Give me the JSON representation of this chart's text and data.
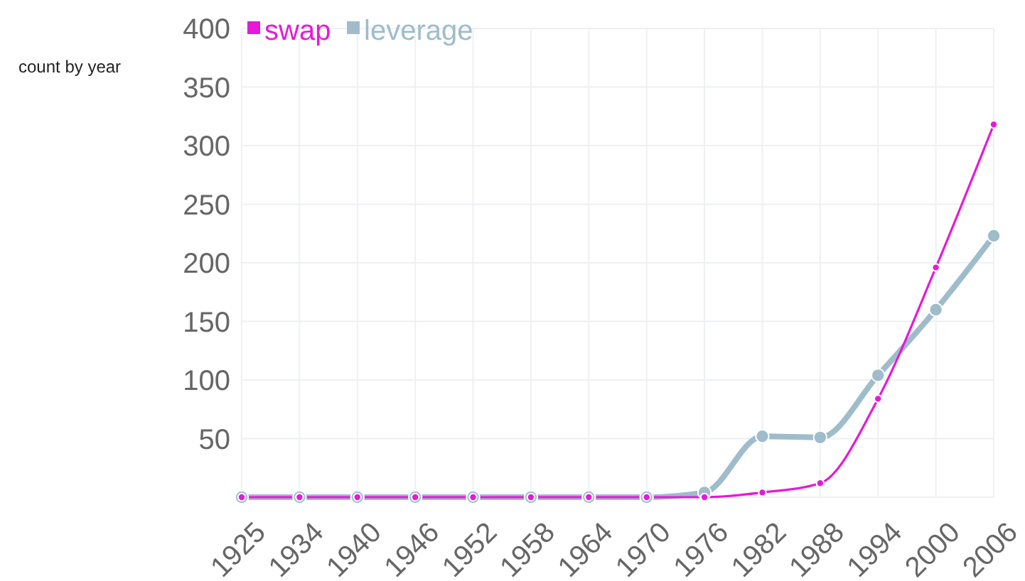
{
  "chart_data": {
    "type": "line",
    "ylabel": "count by year",
    "categories": [
      "1925",
      "1934",
      "1940",
      "1946",
      "1952",
      "1958",
      "1964",
      "1970",
      "1976",
      "1982",
      "1988",
      "1994",
      "2000",
      "2006"
    ],
    "series": [
      {
        "name": "swap",
        "color": "#e619d9",
        "values": [
          0,
          0,
          0,
          0,
          0,
          0,
          0,
          0,
          0,
          4,
          12,
          84,
          196,
          318
        ]
      },
      {
        "name": "leverage",
        "color": "#9fbccb",
        "values": [
          0,
          0,
          0,
          0,
          0,
          0,
          0,
          0,
          4,
          52,
          51,
          104,
          160,
          223
        ]
      }
    ],
    "ylim": [
      0,
      400
    ],
    "yticks": [
      50,
      100,
      150,
      200,
      250,
      300,
      350,
      400
    ],
    "grid": true,
    "legend": "top left",
    "marker": "circle",
    "line_style": "solid"
  }
}
